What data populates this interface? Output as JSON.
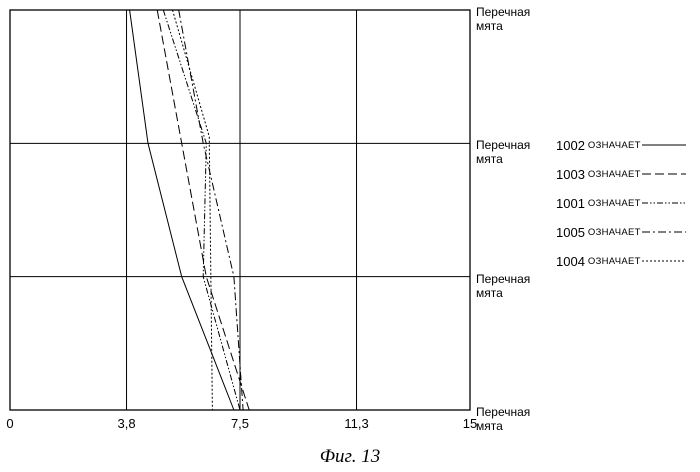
{
  "chart_data": {
    "type": "line",
    "x_ticks": [
      "0",
      "3,8",
      "7,5",
      "11,3",
      "15"
    ],
    "x_tick_values": [
      0,
      3.8,
      7.5,
      11.3,
      15
    ],
    "xlim": [
      0,
      15
    ],
    "y_categories": [
      "Перечная\nмята",
      "Перечная\nмята",
      "Перечная\nмята",
      "Перечная\nмята"
    ],
    "ylim": [
      0,
      3
    ],
    "grid": true,
    "legend_position": "right",
    "series": [
      {
        "name": "1002 ОЗНАЧАЕТ",
        "code": "1002",
        "label": "ОЗНАЧАЕТ",
        "dash": "solid",
        "points": [
          [
            3.9,
            3
          ],
          [
            4.5,
            2
          ],
          [
            5.6,
            1
          ],
          [
            7.3,
            0
          ]
        ]
      },
      {
        "name": "1003 ОЗНАЧАЕТ",
        "code": "1003",
        "label": "ОЗНАЧАЕТ",
        "dash": "dashed",
        "points": [
          [
            4.8,
            3
          ],
          [
            5.6,
            2
          ],
          [
            6.4,
            1
          ],
          [
            7.8,
            0
          ]
        ]
      },
      {
        "name": "1001 ОЗНАЧАЕТ",
        "code": "1001",
        "label": "ОЗНАЧАЕТ",
        "dash": "dash-dot-dot",
        "points": [
          [
            5.0,
            3
          ],
          [
            6.4,
            2
          ],
          [
            6.3,
            1
          ],
          [
            7.5,
            0
          ]
        ]
      },
      {
        "name": "1005 ОЗНАЧАЕТ",
        "code": "1005",
        "label": "ОЗНАЧАЕТ",
        "dash": "dash-dot",
        "points": [
          [
            5.5,
            3
          ],
          [
            6.3,
            2
          ],
          [
            7.3,
            1
          ],
          [
            7.6,
            0
          ]
        ]
      },
      {
        "name": "1004 ОЗНАЧАЕТ",
        "code": "1004",
        "label": "ОЗНАЧАЕТ",
        "dash": "dotted",
        "points": [
          [
            5.3,
            3
          ],
          [
            6.5,
            2.05
          ],
          [
            6.5,
            2
          ],
          [
            6.6,
            0
          ]
        ]
      }
    ]
  },
  "caption": "Фиг. 13"
}
